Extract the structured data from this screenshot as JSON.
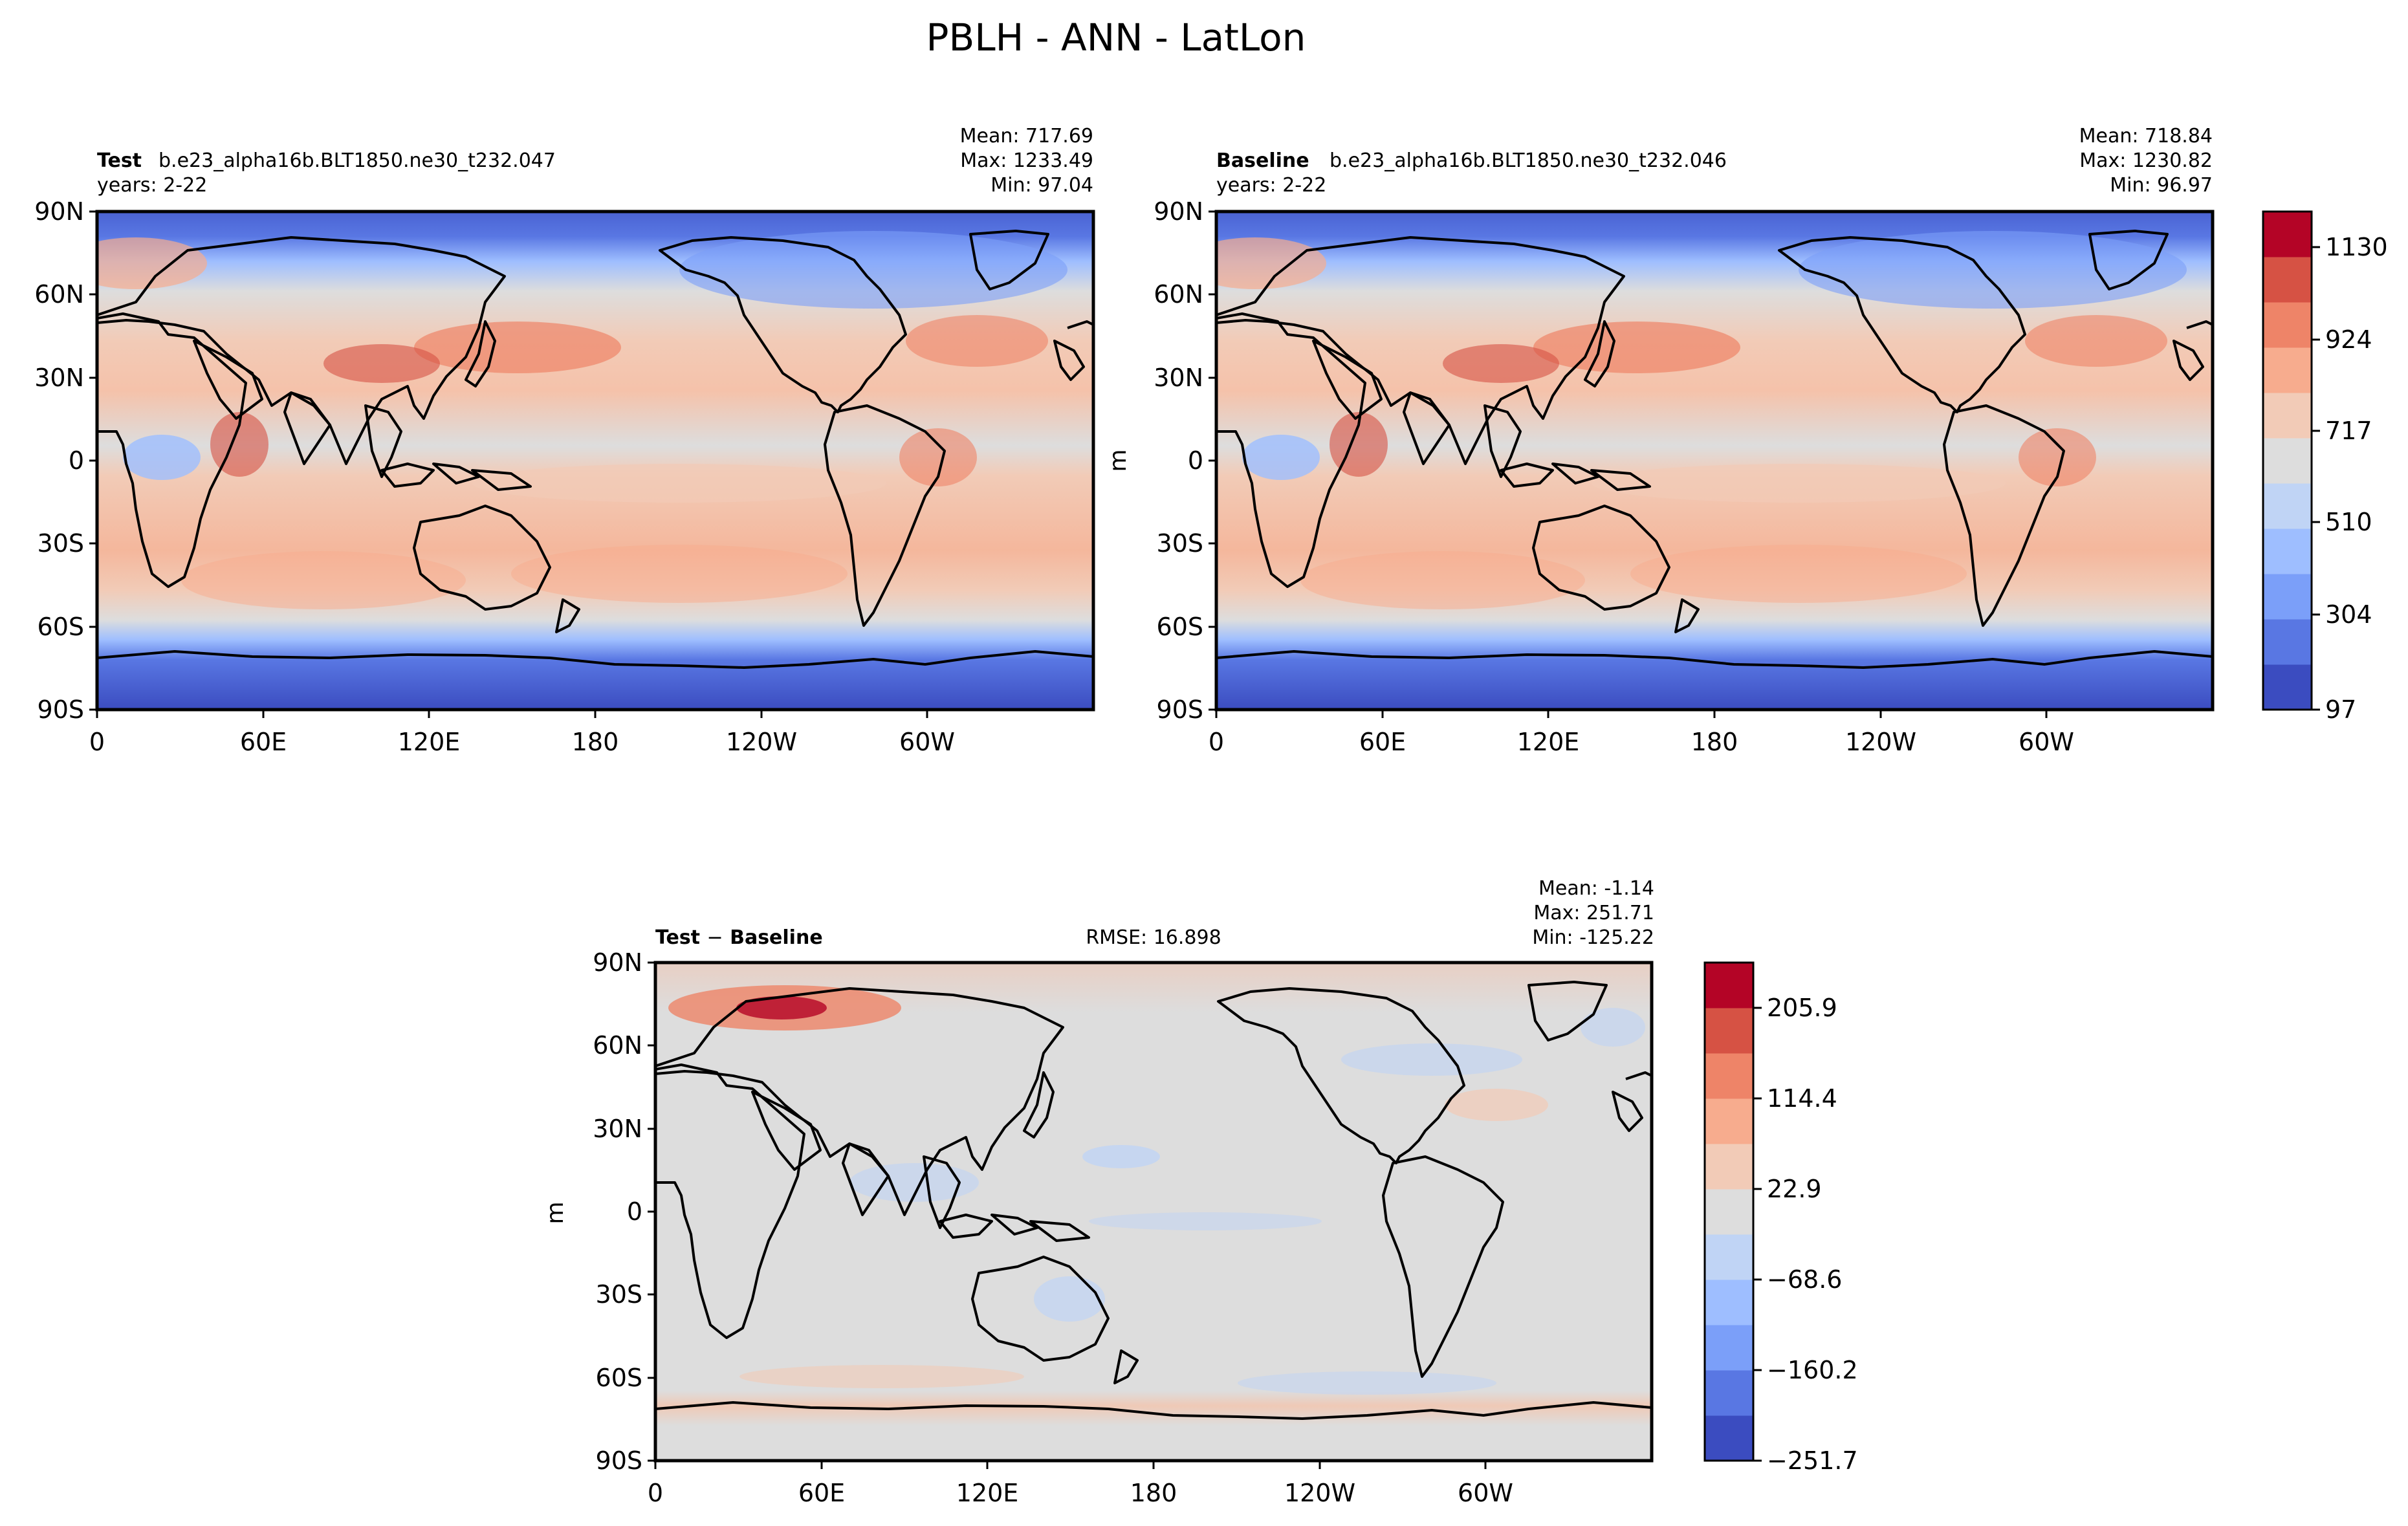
{
  "figure_title": "PBLH - ANN - LatLon",
  "units": "m",
  "panels": {
    "test": {
      "label": "Test",
      "case": "b.e23_alpha16b.BLT1850.ne30_t232.047",
      "years": "years: 2-22",
      "mean": "Mean: 717.69",
      "max": "Max: 1233.49",
      "min": "Min: 97.04"
    },
    "baseline": {
      "label": "Baseline",
      "case": "b.e23_alpha16b.BLT1850.ne30_t232.046",
      "years": "years: 2-22",
      "mean": "Mean: 718.84",
      "max": "Max: 1230.82",
      "min": "Min: 96.97"
    },
    "diff": {
      "label_a": "Test",
      "minus": "−",
      "label_b": "Baseline",
      "rmse": "RMSE: 16.898",
      "mean": "Mean: -1.14",
      "max": "Max: 251.71",
      "min": "Min: -125.22"
    }
  },
  "chart_data": [
    {
      "type": "heatmap",
      "name": "Test",
      "xlabel": "",
      "ylabel": "",
      "xlim": [
        0,
        360
      ],
      "ylim": [
        -90,
        90
      ],
      "x_ticks": [
        "0",
        "60E",
        "120E",
        "180",
        "120W",
        "60W"
      ],
      "y_ticks": [
        "90N",
        "60N",
        "30N",
        "0",
        "30S",
        "60S",
        "90S"
      ],
      "stats": {
        "mean": 717.69,
        "max": 1233.49,
        "min": 97.04
      }
    },
    {
      "type": "heatmap",
      "name": "Baseline",
      "xlabel": "",
      "ylabel": "m",
      "xlim": [
        0,
        360
      ],
      "ylim": [
        -90,
        90
      ],
      "x_ticks": [
        "0",
        "60E",
        "120E",
        "180",
        "120W",
        "60W"
      ],
      "y_ticks": [
        "90N",
        "60N",
        "30N",
        "0",
        "30S",
        "60S",
        "90S"
      ],
      "stats": {
        "mean": 718.84,
        "max": 1230.82,
        "min": 96.97
      },
      "colorbar": {
        "ticks": [
          "97",
          "304",
          "510",
          "717",
          "924",
          "1130"
        ]
      }
    },
    {
      "type": "heatmap",
      "name": "Test - Baseline",
      "xlabel": "",
      "ylabel": "m",
      "xlim": [
        0,
        360
      ],
      "ylim": [
        -90,
        90
      ],
      "x_ticks": [
        "0",
        "60E",
        "120E",
        "180",
        "120W",
        "60W"
      ],
      "y_ticks": [
        "90N",
        "60N",
        "30N",
        "0",
        "30S",
        "60S",
        "90S"
      ],
      "stats": {
        "mean": -1.14,
        "max": 251.71,
        "min": -125.22,
        "rmse": 16.898
      },
      "colorbar": {
        "ticks": [
          "−251.7",
          "−160.2",
          "−68.6",
          "22.9",
          "114.4",
          "205.9"
        ]
      }
    }
  ],
  "colormap": {
    "levels": [
      "#3b4cc0",
      "#5977e3",
      "#7b9ff9",
      "#9ebeff",
      "#c0d4f5",
      "#dddddd",
      "#f2cbb7",
      "#f7ac8e",
      "#ee8468",
      "#d65244",
      "#b40426"
    ]
  }
}
